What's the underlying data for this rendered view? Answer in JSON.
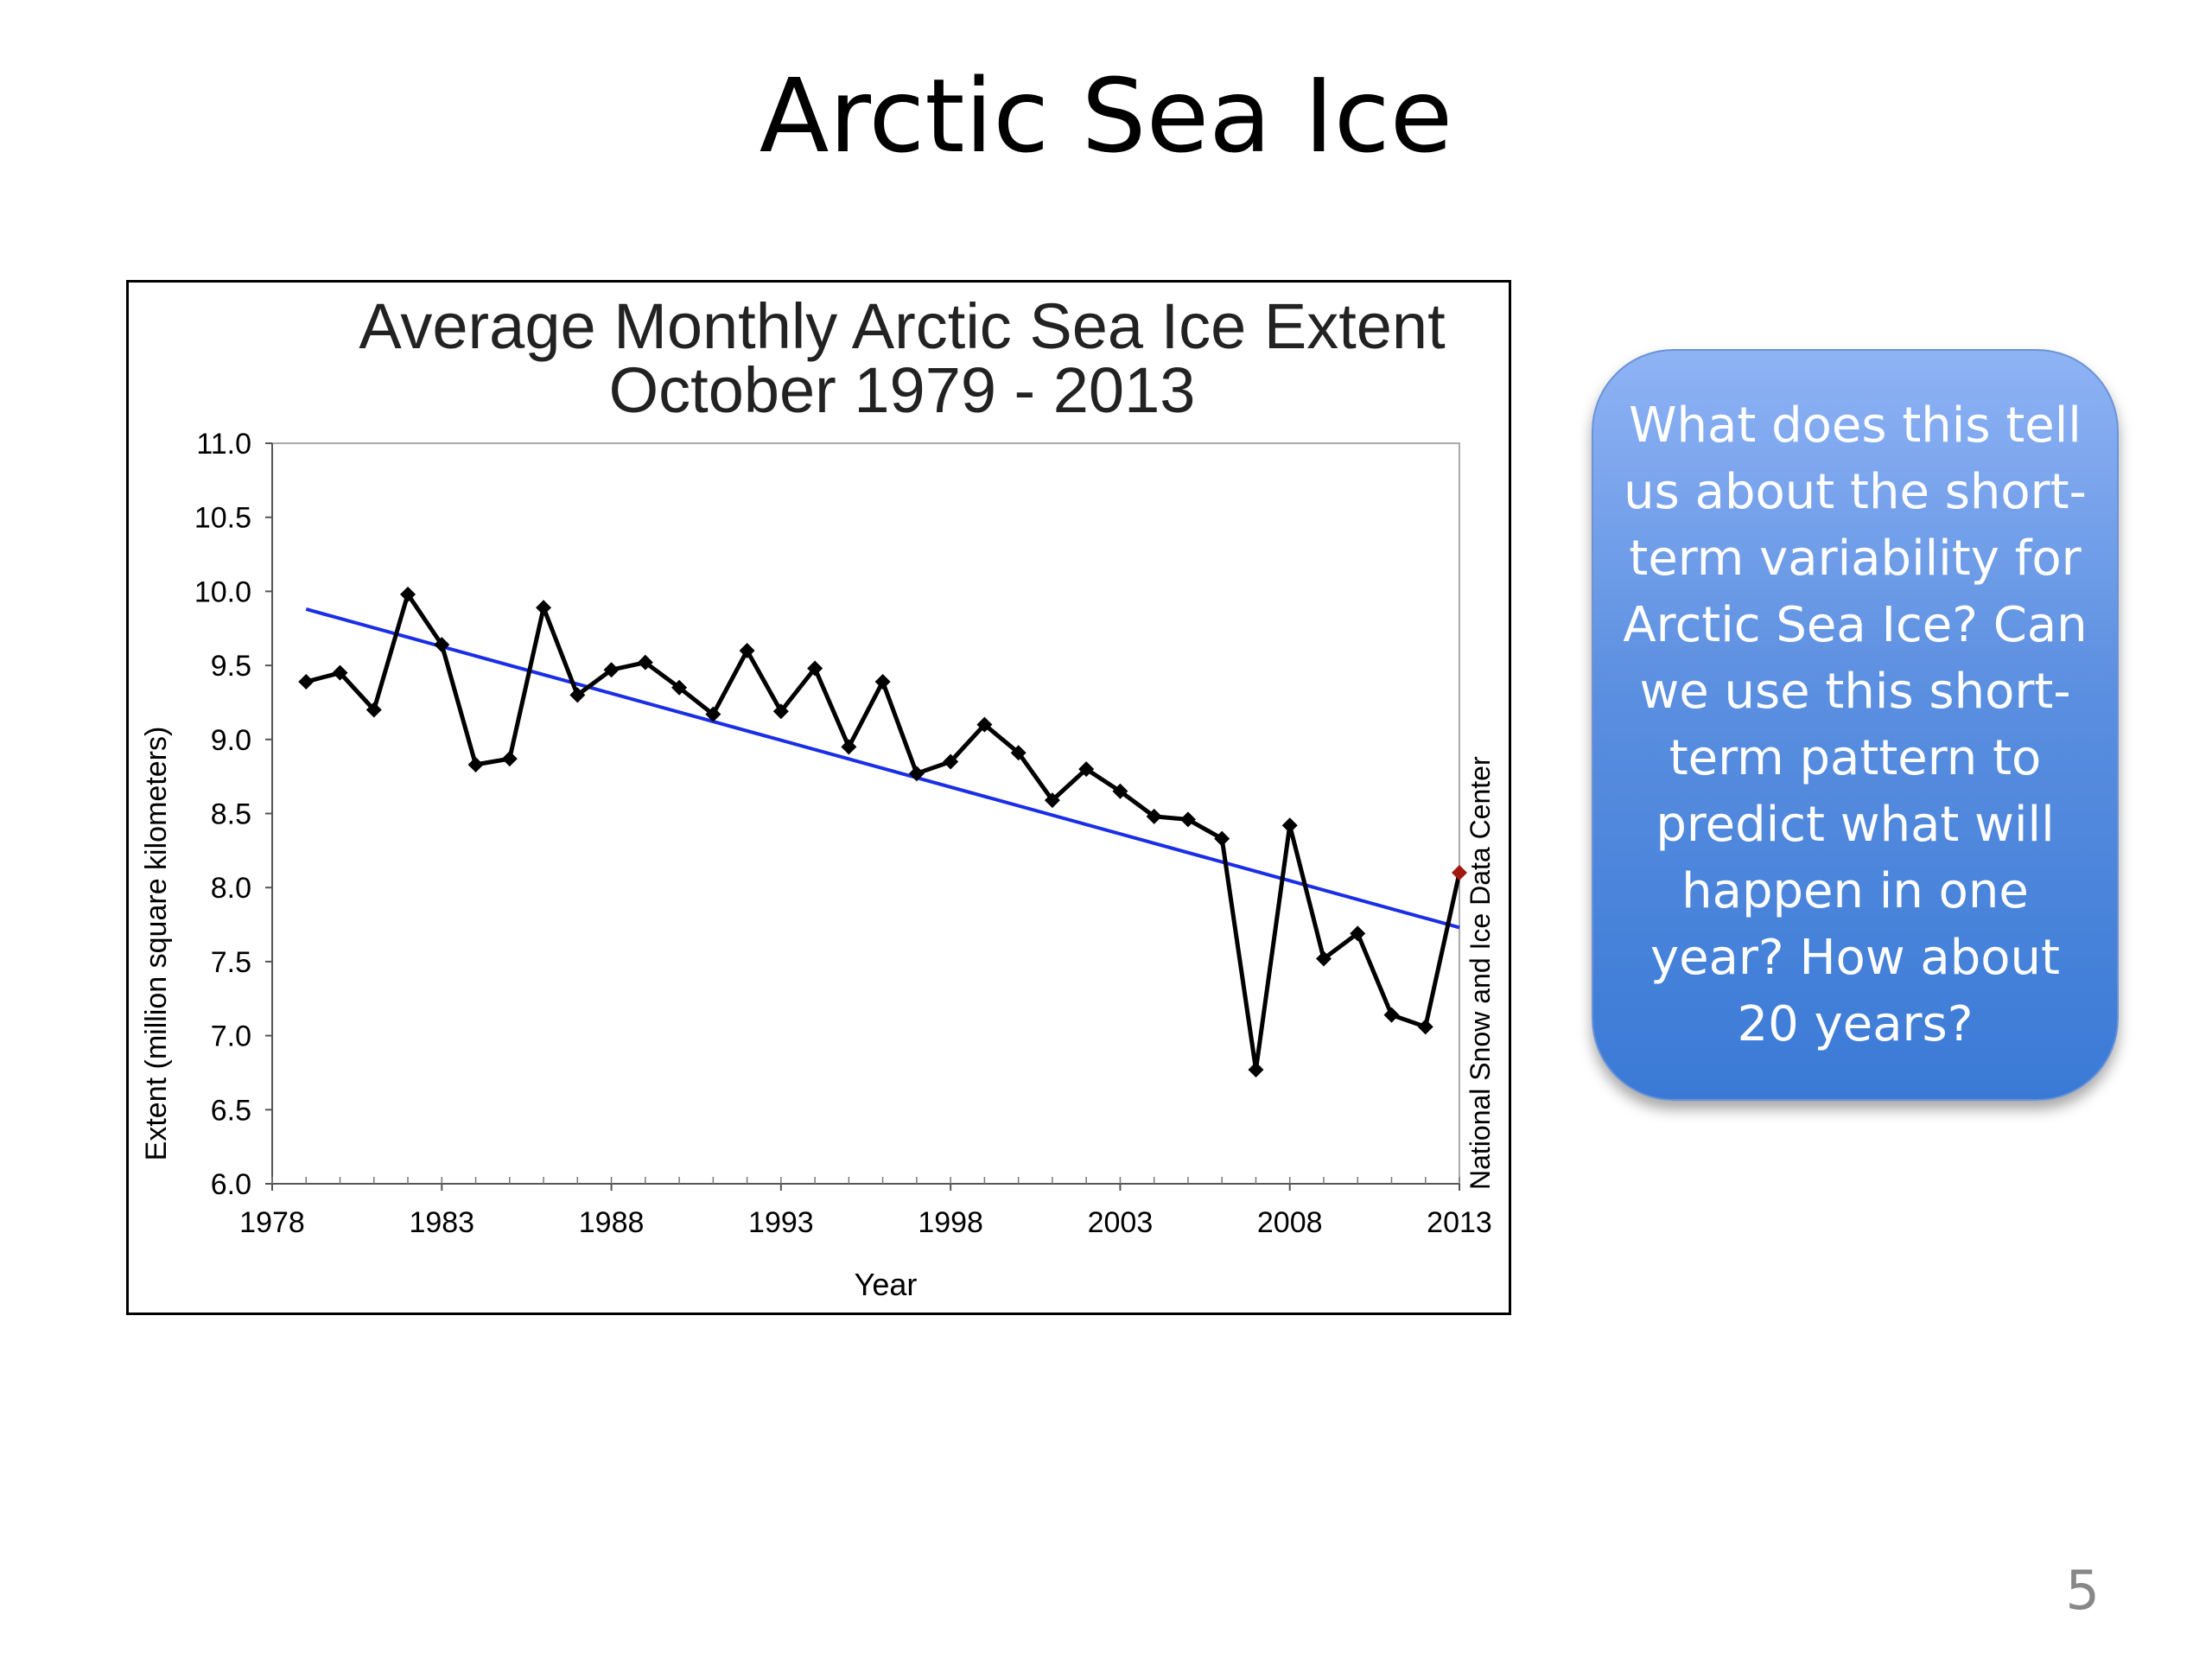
{
  "slide": {
    "title": "Arctic Sea Ice",
    "callout": "What does this tell us about the short-term variability for Arctic Sea Ice? Can we use this short-term pattern to predict what will happen in one year? How about 20 years?",
    "page_number": "5"
  },
  "chart_data": {
    "type": "line",
    "title": "Average Monthly Arctic Sea Ice Extent",
    "subtitle": "October 1979 - 2013",
    "xlabel": "Year",
    "ylabel": "Extent (million square kilometers)",
    "source": "National Snow and Ice Data Center",
    "xlim": [
      1978,
      2013
    ],
    "ylim": [
      6.0,
      11.0
    ],
    "x_ticks": [
      1978,
      1983,
      1988,
      1993,
      1998,
      2003,
      2008,
      2013
    ],
    "y_ticks": [
      "6.0",
      "6.5",
      "7.0",
      "7.5",
      "8.0",
      "8.5",
      "9.0",
      "9.5",
      "10.0",
      "10.5",
      "11.0"
    ],
    "grid": false,
    "series": [
      {
        "color": "#000000",
        "x": [
          1979,
          1980,
          1981,
          1982,
          1983,
          1984,
          1985,
          1986,
          1987,
          1988,
          1989,
          1990,
          1991,
          1992,
          1993,
          1994,
          1995,
          1996,
          1997,
          1998,
          1999,
          2000,
          2001,
          2002,
          2003,
          2004,
          2005,
          2006,
          2007,
          2008,
          2009,
          2010,
          2011,
          2012,
          2013
        ],
        "y": [
          9.39,
          9.45,
          9.2,
          9.98,
          9.64,
          8.83,
          8.87,
          9.89,
          9.3,
          9.47,
          9.52,
          9.35,
          9.17,
          9.6,
          9.19,
          9.48,
          8.95,
          9.39,
          8.77,
          8.85,
          9.1,
          8.91,
          8.59,
          8.8,
          8.65,
          8.48,
          8.46,
          8.33,
          6.77,
          8.42,
          7.52,
          7.69,
          7.14,
          7.06,
          8.1
        ]
      },
      {
        "color": "#1a2ee6",
        "type": "trendline",
        "x": [
          1979,
          2013
        ],
        "y": [
          9.88,
          7.73
        ]
      }
    ],
    "highlight_point": {
      "x": 2013,
      "y": 8.1,
      "color": "#a01810"
    }
  }
}
